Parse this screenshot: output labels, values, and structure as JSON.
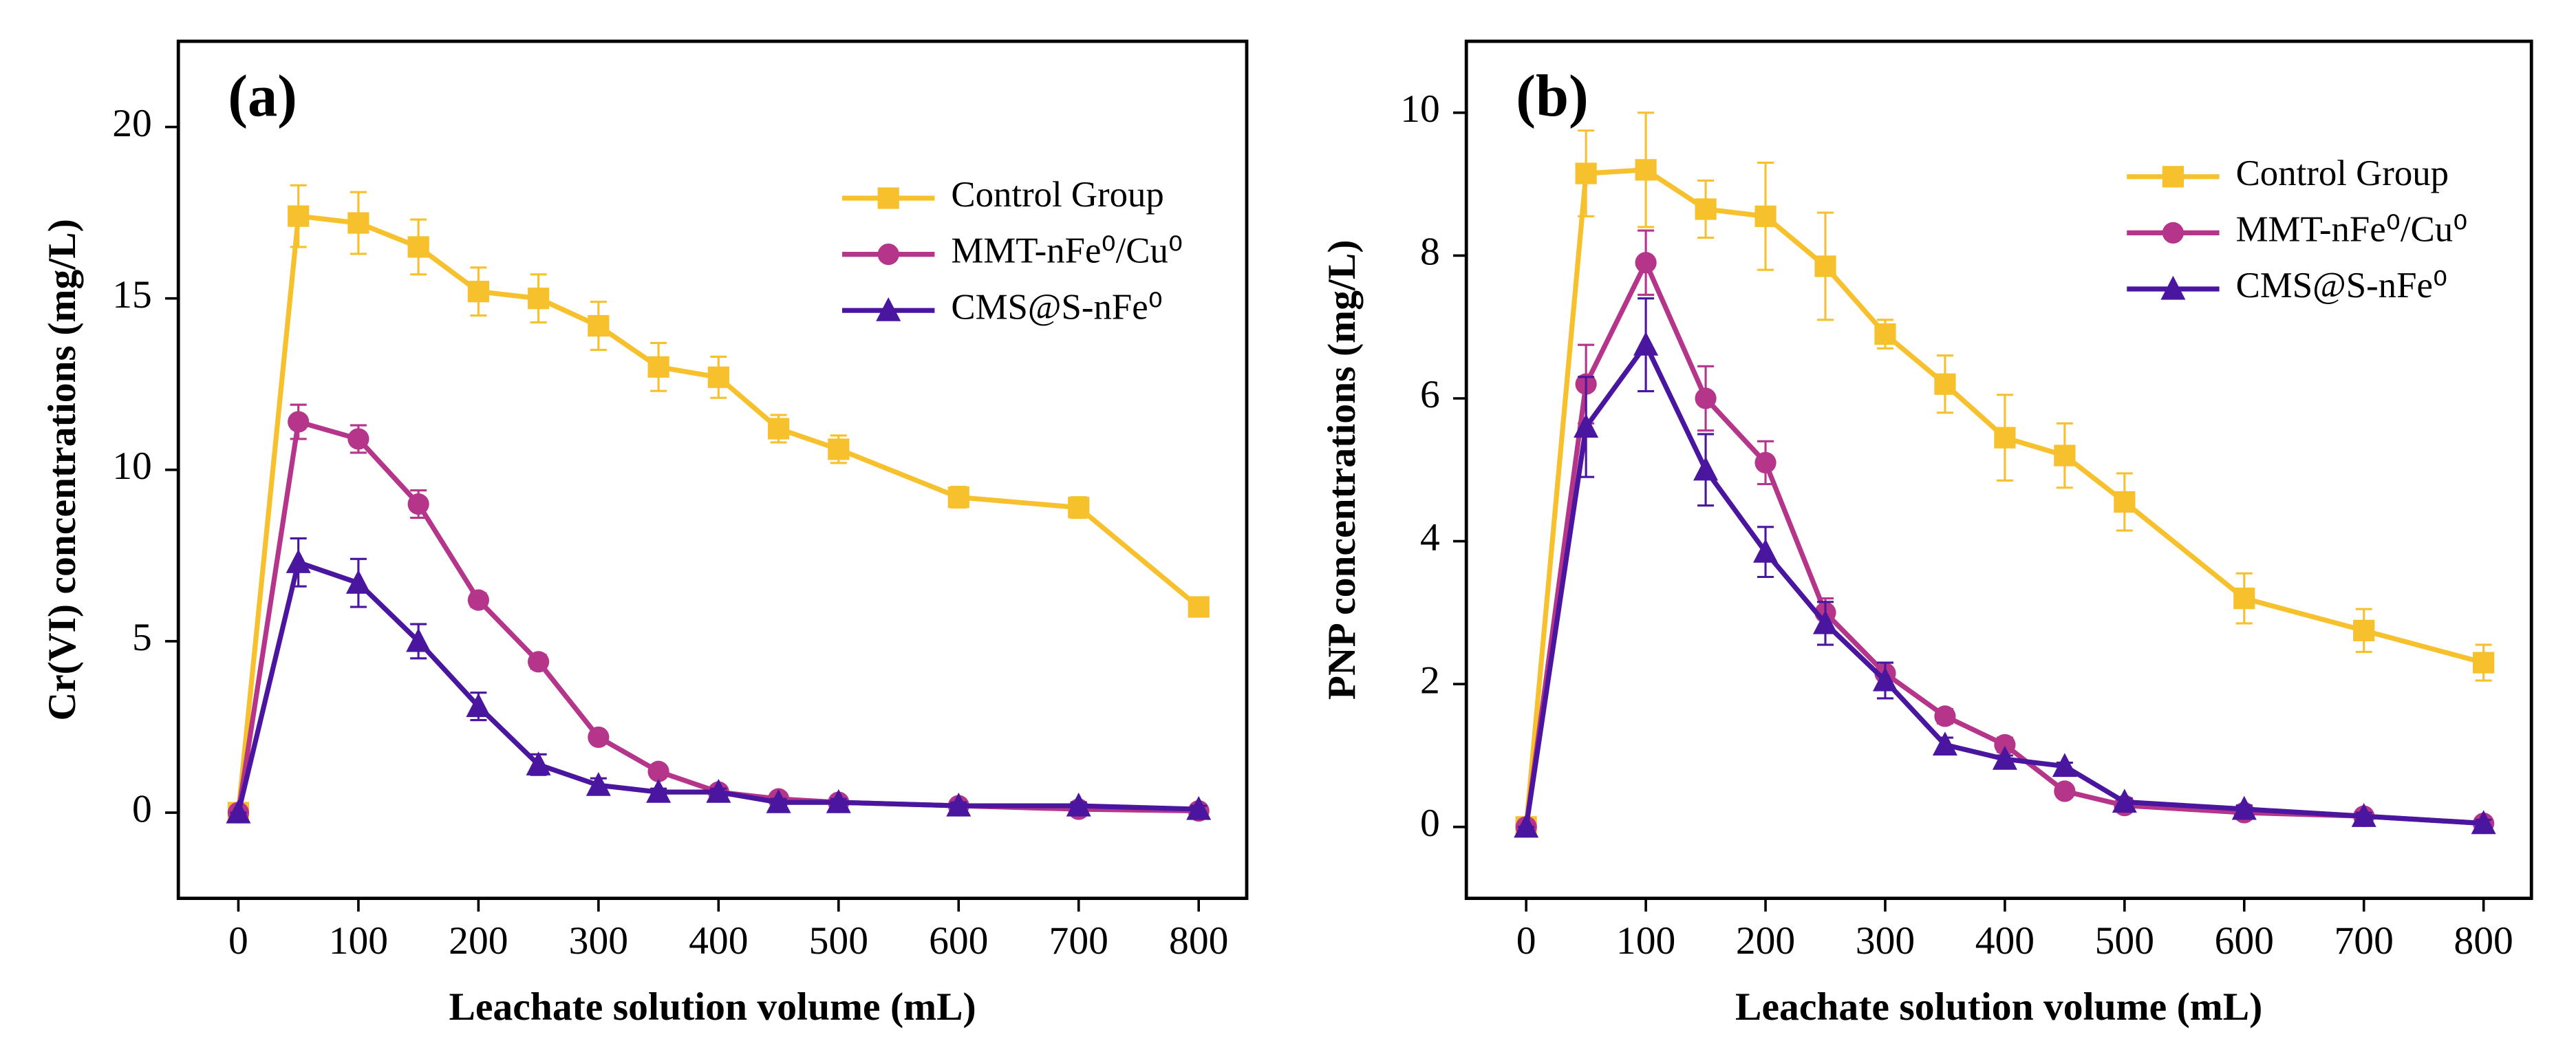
{
  "chart_data": [
    {
      "type": "line",
      "label": "(a)",
      "x_label": "Leachate solution volume (mL)",
      "y_label": "Cr(VI) concentrations (mg/L)",
      "x": [
        0,
        50,
        100,
        150,
        200,
        250,
        300,
        350,
        400,
        450,
        500,
        600,
        700,
        800
      ],
      "series": [
        {
          "name": "Control Group",
          "color": "#f6c12c",
          "marker": "square",
          "values": [
            0,
            17.4,
            17.2,
            16.5,
            15.2,
            15.0,
            14.2,
            13.0,
            12.7,
            11.2,
            10.6,
            9.2,
            8.9,
            6.0
          ],
          "errors": [
            0,
            0.9,
            0.9,
            0.8,
            0.7,
            0.7,
            0.7,
            0.7,
            0.6,
            0.4,
            0.4,
            0.3,
            0.3,
            0.1
          ]
        },
        {
          "name": "MMT-nFe⁰/Cu⁰",
          "color": "#b5358b",
          "marker": "circle",
          "values": [
            0,
            11.4,
            10.9,
            9.0,
            6.2,
            4.4,
            2.2,
            1.2,
            0.6,
            0.4,
            0.3,
            0.2,
            0.1,
            0.05
          ],
          "errors": [
            0,
            0.5,
            0.4,
            0.4,
            0.2,
            0.2,
            0.1,
            0.1,
            0.1,
            0.1,
            0.1,
            0.1,
            0.1,
            0.05
          ]
        },
        {
          "name": "CMS@S-nFe⁰",
          "color": "#4a169f",
          "marker": "triangle",
          "values": [
            0,
            7.3,
            6.7,
            5.0,
            3.1,
            1.4,
            0.8,
            0.6,
            0.6,
            0.3,
            0.3,
            0.2,
            0.2,
            0.1
          ],
          "errors": [
            0,
            0.7,
            0.7,
            0.5,
            0.4,
            0.3,
            0.2,
            0.1,
            0.1,
            0.1,
            0.1,
            0.1,
            0.1,
            0.1
          ]
        }
      ],
      "xlim": [
        -50,
        840
      ],
      "ylim": [
        -2.5,
        22.5
      ],
      "xticks": [
        0,
        100,
        200,
        300,
        400,
        500,
        600,
        700,
        800
      ],
      "yticks": [
        0,
        5,
        10,
        15,
        20
      ],
      "legend": "upper right"
    },
    {
      "type": "line",
      "label": "(b)",
      "x_label": "Leachate solution volume (mL)",
      "y_label": "PNP concentrations (mg/L)",
      "x": [
        0,
        50,
        100,
        150,
        200,
        250,
        300,
        350,
        400,
        450,
        500,
        600,
        700,
        800
      ],
      "series": [
        {
          "name": "Control Group",
          "color": "#f6c12c",
          "marker": "square",
          "values": [
            0,
            9.15,
            9.2,
            8.65,
            8.55,
            7.85,
            6.9,
            6.2,
            5.45,
            5.2,
            4.55,
            3.2,
            2.75,
            2.3
          ],
          "errors": [
            0,
            0.6,
            0.8,
            0.4,
            0.75,
            0.75,
            0.2,
            0.4,
            0.6,
            0.45,
            0.4,
            0.35,
            0.3,
            0.25
          ]
        },
        {
          "name": "MMT-nFe⁰/Cu⁰",
          "color": "#b5358b",
          "marker": "circle",
          "values": [
            0,
            6.2,
            7.9,
            6.0,
            5.1,
            3.0,
            2.15,
            1.55,
            1.15,
            0.5,
            0.3,
            0.2,
            0.15,
            0.05
          ],
          "errors": [
            0,
            0.55,
            0.45,
            0.45,
            0.3,
            0.2,
            0.15,
            0.1,
            0.1,
            0.05,
            0.05,
            0.05,
            0.05,
            0.05
          ]
        },
        {
          "name": "CMS@S-nFe⁰",
          "color": "#4a169f",
          "marker": "triangle",
          "values": [
            0,
            5.6,
            6.75,
            5.0,
            3.85,
            2.85,
            2.05,
            1.15,
            0.95,
            0.85,
            0.35,
            0.25,
            0.15,
            0.05
          ],
          "errors": [
            0,
            0.7,
            0.65,
            0.5,
            0.35,
            0.3,
            0.25,
            0.1,
            0.05,
            0.05,
            0.05,
            0.05,
            0.05,
            0.05
          ]
        }
      ],
      "xlim": [
        -50,
        840
      ],
      "ylim": [
        -1,
        11
      ],
      "xticks": [
        0,
        100,
        200,
        300,
        400,
        500,
        600,
        700,
        800
      ],
      "yticks": [
        0,
        2,
        4,
        6,
        8,
        10
      ],
      "legend": "upper right"
    }
  ]
}
